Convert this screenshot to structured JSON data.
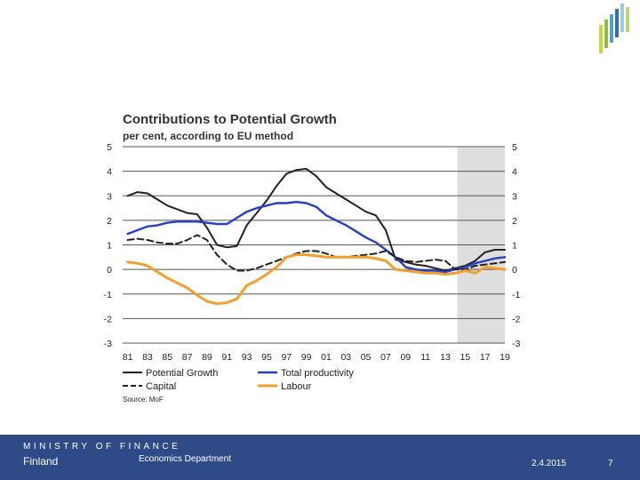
{
  "brand_colors": [
    "#c7d63f",
    "#8fbd3f",
    "#4fa3c9",
    "#2f6fb0",
    "#9ecbe0",
    "#b9d86a"
  ],
  "footer": {
    "ministry": "MINISTRY OF FINANCE",
    "country": "Finland",
    "department": "Economics Department",
    "date": "2.4.2015",
    "page": "7"
  },
  "chart_data": {
    "type": "line",
    "title": "Contributions to Potential Growth",
    "subtitle": "per cent, according to EU method",
    "ylim": [
      -3,
      5
    ],
    "yticks": [
      "5",
      "4",
      "3",
      "2",
      "1",
      "0",
      "-1",
      "-2",
      "-3"
    ],
    "xlim": [
      1980.5,
      2019
    ],
    "xtick_labels": [
      "81",
      "83",
      "85",
      "87",
      "89",
      "91",
      "93",
      "95",
      "97",
      "99",
      "01",
      "03",
      "05",
      "07",
      "09",
      "11",
      "13",
      "15",
      "17",
      "19"
    ],
    "forecast_shade": [
      2014.2,
      2019
    ],
    "source": "Source: MoF",
    "series": [
      {
        "name": "Potential Growth",
        "color": "#222222",
        "style": "solid",
        "x": [
          1981,
          1982,
          1983,
          1984,
          1985,
          1986,
          1987,
          1988,
          1989,
          1990,
          1991,
          1992,
          1993,
          1994,
          1995,
          1996,
          1997,
          1998,
          1999,
          2000,
          2001,
          2002,
          2003,
          2004,
          2005,
          2006,
          2007,
          2008,
          2009,
          2010,
          2011,
          2012,
          2013,
          2014,
          2015,
          2016,
          2017,
          2018,
          2019
        ],
        "values": [
          3.0,
          3.15,
          3.1,
          2.85,
          2.6,
          2.45,
          2.3,
          2.25,
          1.7,
          1.0,
          0.9,
          0.95,
          1.8,
          2.3,
          2.8,
          3.4,
          3.9,
          4.05,
          4.1,
          3.8,
          3.35,
          3.1,
          2.85,
          2.6,
          2.35,
          2.2,
          1.6,
          0.4,
          0.3,
          0.2,
          0.15,
          0.05,
          -0.05,
          0.05,
          0.15,
          0.35,
          0.7,
          0.8,
          0.8
        ]
      },
      {
        "name": "Total productivity",
        "color": "#2a3fbf",
        "style": "solid",
        "x": [
          1981,
          1982,
          1983,
          1984,
          1985,
          1986,
          1987,
          1988,
          1989,
          1990,
          1991,
          1992,
          1993,
          1994,
          1995,
          1996,
          1997,
          1998,
          1999,
          2000,
          2001,
          2002,
          2003,
          2004,
          2005,
          2006,
          2007,
          2008,
          2009,
          2010,
          2011,
          2012,
          2013,
          2014,
          2015,
          2016,
          2017,
          2018,
          2019
        ],
        "values": [
          1.45,
          1.6,
          1.75,
          1.8,
          1.9,
          1.95,
          1.95,
          1.95,
          1.9,
          1.85,
          1.85,
          2.1,
          2.35,
          2.5,
          2.6,
          2.7,
          2.7,
          2.75,
          2.7,
          2.55,
          2.2,
          2.0,
          1.8,
          1.55,
          1.3,
          1.1,
          0.8,
          0.5,
          0.1,
          0.0,
          -0.05,
          -0.05,
          -0.1,
          0.0,
          0.1,
          0.25,
          0.35,
          0.45,
          0.5
        ]
      },
      {
        "name": "Capital",
        "color": "#222222",
        "style": "dashed",
        "x": [
          1981,
          1982,
          1983,
          1984,
          1985,
          1986,
          1987,
          1988,
          1989,
          1990,
          1991,
          1992,
          1993,
          1994,
          1995,
          1996,
          1997,
          1998,
          1999,
          2000,
          2001,
          2002,
          2003,
          2004,
          2005,
          2006,
          2007,
          2008,
          2009,
          2010,
          2011,
          2012,
          2013,
          2014,
          2015,
          2016,
          2017,
          2018,
          2019
        ],
        "values": [
          1.2,
          1.25,
          1.2,
          1.1,
          1.05,
          1.05,
          1.2,
          1.4,
          1.2,
          0.6,
          0.2,
          -0.05,
          -0.05,
          0.05,
          0.2,
          0.35,
          0.5,
          0.65,
          0.75,
          0.75,
          0.65,
          0.5,
          0.5,
          0.55,
          0.6,
          0.65,
          0.75,
          0.5,
          0.35,
          0.3,
          0.35,
          0.4,
          0.35,
          0.0,
          0.0,
          0.15,
          0.2,
          0.25,
          0.3
        ]
      },
      {
        "name": "Labour",
        "color": "#f0a030",
        "style": "solid",
        "x": [
          1981,
          1982,
          1983,
          1984,
          1985,
          1986,
          1987,
          1988,
          1989,
          1990,
          1991,
          1992,
          1993,
          1994,
          1995,
          1996,
          1997,
          1998,
          1999,
          2000,
          2001,
          2002,
          2003,
          2004,
          2005,
          2006,
          2007,
          2008,
          2009,
          2010,
          2011,
          2012,
          2013,
          2014,
          2015,
          2016,
          2017,
          2018,
          2019
        ],
        "values": [
          0.3,
          0.25,
          0.15,
          -0.1,
          -0.35,
          -0.55,
          -0.75,
          -1.05,
          -1.3,
          -1.4,
          -1.35,
          -1.2,
          -0.65,
          -0.45,
          -0.2,
          0.1,
          0.5,
          0.6,
          0.6,
          0.55,
          0.5,
          0.5,
          0.5,
          0.5,
          0.5,
          0.45,
          0.35,
          0.0,
          -0.05,
          -0.1,
          -0.15,
          -0.15,
          -0.2,
          -0.15,
          -0.05,
          -0.15,
          0.1,
          0.05,
          0.0
        ]
      }
    ]
  }
}
